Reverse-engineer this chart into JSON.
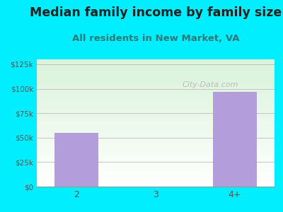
{
  "title": "Median family income by family size",
  "subtitle": "All residents in New Market, VA",
  "categories": [
    "2",
    "3",
    "4+"
  ],
  "values": [
    55000,
    0,
    97000
  ],
  "bar_color": "#b39ddb",
  "background_color": "#00eeff",
  "yticks": [
    0,
    25000,
    50000,
    75000,
    100000,
    125000
  ],
  "ytick_labels": [
    "$0",
    "$25k",
    "$50k",
    "$75k",
    "$100k",
    "$125k"
  ],
  "ylim": [
    0,
    130000
  ],
  "title_color": "#222222",
  "subtitle_color": "#2a7a7a",
  "tick_color": "#555555",
  "watermark": "City-Data.com",
  "title_fontsize": 12.5,
  "subtitle_fontsize": 9.5
}
